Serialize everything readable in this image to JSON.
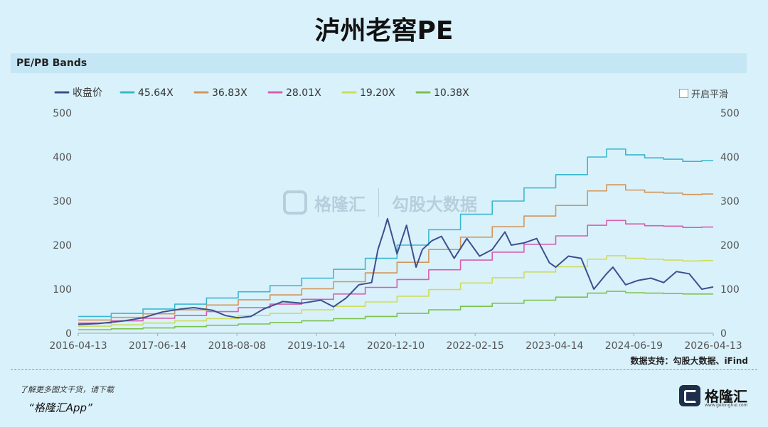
{
  "page": {
    "title": "泸州老窖PE",
    "panel_title": "PE/PB Bands",
    "smooth_toggle_label": "开启平滑",
    "source_text": "数据支持：勾股大数据、iFind",
    "footer_note": "了解更多图文干货，请下载",
    "footer_app": "“格隆汇App”",
    "brand_name": "格隆汇",
    "brand_url": "www.gelonghui.com",
    "watermark_left": "格隆汇",
    "watermark_right": "勾股大数据"
  },
  "chart_data": {
    "type": "line",
    "x_tick_labels": [
      "2016-04-13",
      "2017-06-14",
      "2018-08-08",
      "2019-10-14",
      "2020-12-10",
      "2022-02-15",
      "2023-04-14",
      "2024-06-19",
      "2026-04-13"
    ],
    "y_ticks": [
      0,
      100,
      200,
      300,
      400,
      500
    ],
    "ylim": [
      0,
      500
    ],
    "xlim": [
      2016.28,
      2026.28
    ],
    "grid": false,
    "legend_position": "top-left",
    "series": [
      {
        "name": "收盘价",
        "color": "#3d4f8f",
        "x": [
          2016.28,
          2016.6,
          2017.0,
          2017.3,
          2017.6,
          2017.9,
          2018.1,
          2018.4,
          2018.6,
          2018.8,
          2019.0,
          2019.2,
          2019.5,
          2019.8,
          2020.1,
          2020.3,
          2020.5,
          2020.7,
          2020.9,
          2021.0,
          2021.1,
          2021.15,
          2021.3,
          2021.45,
          2021.6,
          2021.7,
          2021.85,
          2022.0,
          2022.2,
          2022.4,
          2022.6,
          2022.8,
          2023.0,
          2023.1,
          2023.3,
          2023.5,
          2023.7,
          2023.8,
          2024.0,
          2024.2,
          2024.4,
          2024.6,
          2024.7,
          2024.9,
          2025.1,
          2025.3,
          2025.5,
          2025.7,
          2025.9,
          2026.1,
          2026.28
        ],
        "y": [
          20,
          22,
          28,
          35,
          48,
          55,
          58,
          52,
          40,
          35,
          38,
          55,
          72,
          68,
          75,
          60,
          80,
          110,
          115,
          190,
          235,
          260,
          180,
          245,
          150,
          190,
          210,
          220,
          170,
          215,
          175,
          190,
          230,
          200,
          205,
          215,
          160,
          150,
          175,
          170,
          100,
          135,
          150,
          110,
          120,
          125,
          115,
          140,
          135,
          100,
          105
        ]
      },
      {
        "name": "45.64X",
        "color": "#3ab8cf",
        "x": [
          2016.28,
          2016.8,
          2017.3,
          2017.8,
          2018.3,
          2018.8,
          2019.3,
          2019.8,
          2020.3,
          2020.8,
          2021.3,
          2021.8,
          2022.3,
          2022.8,
          2023.3,
          2023.8,
          2024.3,
          2024.6,
          2024.9,
          2025.2,
          2025.5,
          2025.8,
          2026.1,
          2026.28
        ],
        "y": [
          38,
          45,
          55,
          66,
          80,
          94,
          108,
          125,
          145,
          170,
          200,
          235,
          270,
          300,
          330,
          360,
          400,
          418,
          405,
          398,
          395,
          390,
          392,
          392
        ]
      },
      {
        "name": "36.83X",
        "color": "#d2965a",
        "x": [
          2016.28,
          2016.8,
          2017.3,
          2017.8,
          2018.3,
          2018.8,
          2019.3,
          2019.8,
          2020.3,
          2020.8,
          2021.3,
          2021.8,
          2022.3,
          2022.8,
          2023.3,
          2023.8,
          2024.3,
          2024.6,
          2024.9,
          2025.2,
          2025.5,
          2025.8,
          2026.1,
          2026.28
        ],
        "y": [
          30,
          36,
          44,
          53,
          64,
          76,
          87,
          101,
          117,
          137,
          161,
          190,
          218,
          242,
          266,
          290,
          323,
          337,
          325,
          320,
          318,
          315,
          316,
          316
        ]
      },
      {
        "name": "28.01X",
        "color": "#d65fb0",
        "x": [
          2016.28,
          2016.8,
          2017.3,
          2017.8,
          2018.3,
          2018.8,
          2019.3,
          2019.8,
          2020.3,
          2020.8,
          2021.3,
          2021.8,
          2022.3,
          2022.8,
          2023.3,
          2023.8,
          2024.3,
          2024.6,
          2024.9,
          2025.2,
          2025.5,
          2025.8,
          2026.1,
          2026.28
        ],
        "y": [
          23,
          28,
          34,
          40,
          49,
          58,
          66,
          77,
          89,
          104,
          122,
          144,
          166,
          184,
          202,
          221,
          245,
          256,
          248,
          244,
          243,
          240,
          241,
          241
        ]
      },
      {
        "name": "19.20X",
        "color": "#cfdc5a",
        "x": [
          2016.28,
          2016.8,
          2017.3,
          2017.8,
          2018.3,
          2018.8,
          2019.3,
          2019.8,
          2020.3,
          2020.8,
          2021.3,
          2021.8,
          2022.3,
          2022.8,
          2023.3,
          2023.8,
          2024.3,
          2024.6,
          2024.9,
          2025.2,
          2025.5,
          2025.8,
          2026.1,
          2026.28
        ],
        "y": [
          16,
          19,
          23,
          28,
          33,
          40,
          45,
          53,
          61,
          71,
          84,
          99,
          114,
          126,
          139,
          151,
          168,
          176,
          170,
          168,
          166,
          164,
          165,
          165
        ]
      },
      {
        "name": "10.38X",
        "color": "#7cc24d",
        "x": [
          2016.28,
          2016.8,
          2017.3,
          2017.8,
          2018.3,
          2018.8,
          2019.3,
          2019.8,
          2020.3,
          2020.8,
          2021.3,
          2021.8,
          2022.3,
          2022.8,
          2023.3,
          2023.8,
          2024.3,
          2024.6,
          2024.9,
          2025.2,
          2025.5,
          2025.8,
          2026.1,
          2026.28
        ],
        "y": [
          8,
          10,
          12,
          15,
          18,
          21,
          24,
          28,
          33,
          38,
          45,
          53,
          61,
          68,
          75,
          82,
          91,
          95,
          92,
          91,
          90,
          89,
          89,
          89
        ]
      }
    ]
  }
}
